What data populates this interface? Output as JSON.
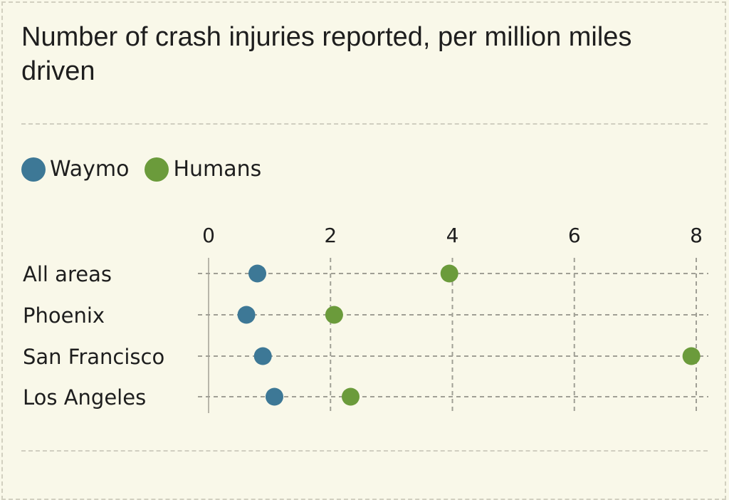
{
  "chart_data": {
    "type": "scatter",
    "title": "Number of crash injuries reported, per million miles driven",
    "categories": [
      "All areas",
      "Phoenix",
      "San Francisco",
      "Los Angeles"
    ],
    "series": [
      {
        "name": "Waymo",
        "color": "#3d7896",
        "values": [
          0.8,
          0.62,
          0.89,
          1.08
        ]
      },
      {
        "name": "Humans",
        "color": "#6b9b3b",
        "values": [
          3.95,
          2.06,
          7.92,
          2.33
        ]
      }
    ],
    "xticks": [
      0,
      2,
      4,
      6,
      8
    ],
    "xlim": [
      0,
      8
    ],
    "xlabel": "",
    "ylabel": "",
    "grid": true,
    "legend": "top-left"
  }
}
